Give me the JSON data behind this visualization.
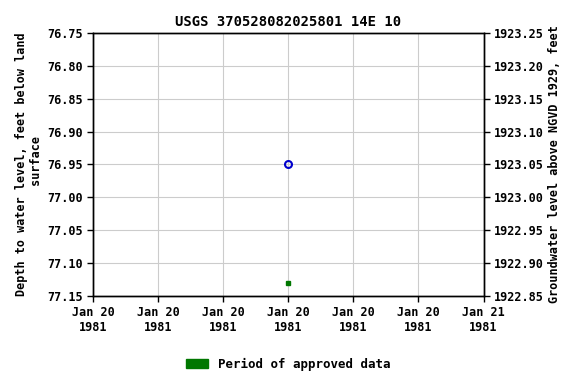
{
  "title": "USGS 370528082025801 14E 10",
  "ylabel_left": "Depth to water level, feet below land\n surface",
  "ylabel_right": "Groundwater level above NGVD 1929, feet",
  "ylim_left": [
    77.15,
    76.75
  ],
  "ylim_right": [
    1922.85,
    1923.25
  ],
  "yticks_left": [
    76.75,
    76.8,
    76.85,
    76.9,
    76.95,
    77.0,
    77.05,
    77.1,
    77.15
  ],
  "yticks_right": [
    1922.85,
    1922.9,
    1922.95,
    1923.0,
    1923.05,
    1923.1,
    1923.15,
    1923.2,
    1923.25
  ],
  "xtick_labels": [
    "Jan 20\n1981",
    "Jan 20\n1981",
    "Jan 20\n1981",
    "Jan 20\n1981",
    "Jan 20\n1981",
    "Jan 20\n1981",
    "Jan 21\n1981"
  ],
  "xlim": [
    0,
    6
  ],
  "xtick_positions": [
    0,
    1,
    2,
    3,
    4,
    5,
    6
  ],
  "blue_point_x": 3,
  "blue_point_y": 76.95,
  "green_point_x": 3,
  "green_point_y": 77.13,
  "blue_color": "#0000cc",
  "green_color": "#007700",
  "background_color": "#ffffff",
  "grid_color": "#cccccc",
  "legend_label": "Period of approved data",
  "title_fontsize": 10,
  "axis_fontsize": 8.5,
  "tick_fontsize": 8.5,
  "legend_fontsize": 9
}
